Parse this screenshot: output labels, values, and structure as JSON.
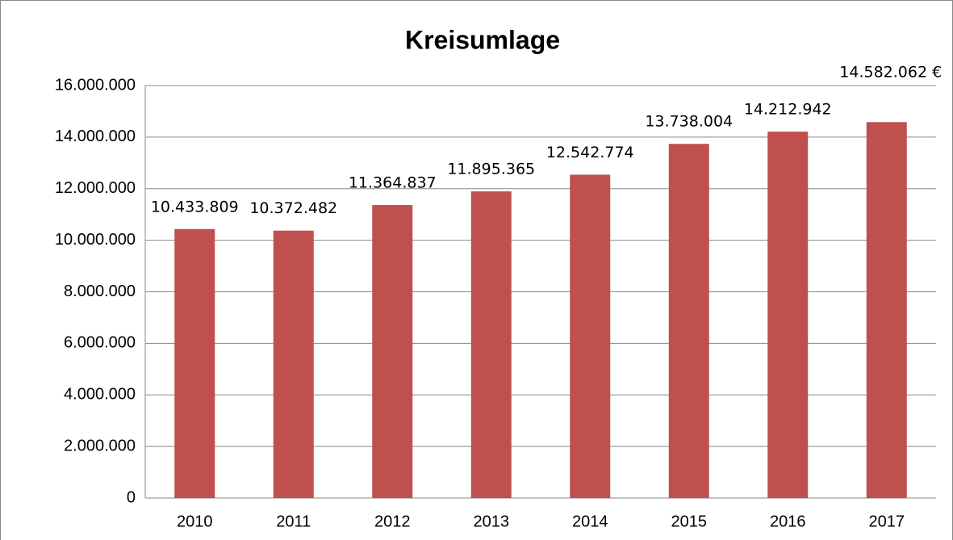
{
  "chart_data": {
    "type": "bar",
    "title": "Kreisumlage",
    "categories": [
      "2010",
      "2011",
      "2012",
      "2013",
      "2014",
      "2015",
      "2016",
      "2017"
    ],
    "values": [
      10433809,
      10372482,
      11364837,
      11895365,
      12542774,
      13738004,
      14212942,
      14582062
    ],
    "value_labels": [
      "10.433.809",
      "10.372.482",
      "11.364.837",
      "11.895.365",
      "12.542.774",
      "13.738.004",
      "14.212.942",
      "14.582.062 €"
    ],
    "color": "#c0504d",
    "ylim": [
      0,
      16000000
    ],
    "yticks": [
      0,
      {
        "value": 2000000,
        "label": "2.000.000"
      },
      {
        "value": 4000000,
        "label": "4.000.000"
      },
      {
        "value": 6000000,
        "label": "6.000.000"
      },
      {
        "value": 8000000,
        "label": "8.000.000"
      },
      {
        "value": 10000000,
        "label": "10.000.000"
      },
      {
        "value": 12000000,
        "label": "12.000.000"
      },
      {
        "value": 14000000,
        "label": "14.000.000"
      },
      {
        "value": 16000000,
        "label": "16.000.000"
      }
    ],
    "grid": true
  }
}
